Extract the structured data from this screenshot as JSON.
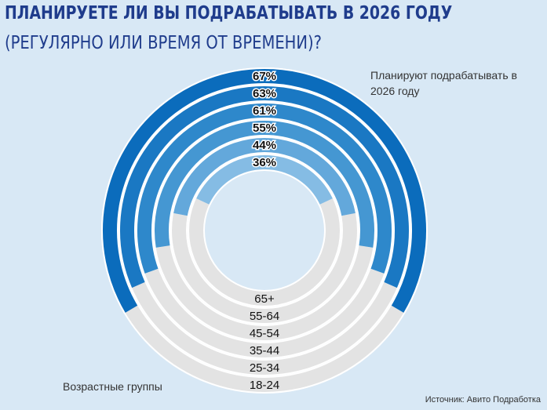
{
  "chart_data": {
    "type": "radial_bar",
    "title": "ПЛАНИРУЕТЕ ЛИ ВЫ ПОДРАБАТЫВАТЬ В 2026 ГОДУ",
    "subtitle": "(РЕГУЛЯРНО ИЛИ ВРЕМЯ ОТ ВРЕМЕНИ)?",
    "categories": [
      "18-24",
      "25-34",
      "35-44",
      "45-54",
      "55-64",
      "65+"
    ],
    "series": [
      {
        "name": "Планируют подрабатывать в 2026 году",
        "colors": [
          "#0b6cbc",
          "#1a78c3",
          "#2e88cb",
          "#4597d2",
          "#63a8db",
          "#85bce4"
        ],
        "values": [
          67,
          63,
          61,
          55,
          44,
          36
        ],
        "value_labels": [
          "67%",
          "63%",
          "61%",
          "55%",
          "44%",
          "36%"
        ]
      }
    ],
    "track_color": "#e3e3e3",
    "ylim": [
      0,
      100
    ],
    "category_axis_label": "Возрастные группы",
    "source": "Источник: Авито Подработка"
  }
}
